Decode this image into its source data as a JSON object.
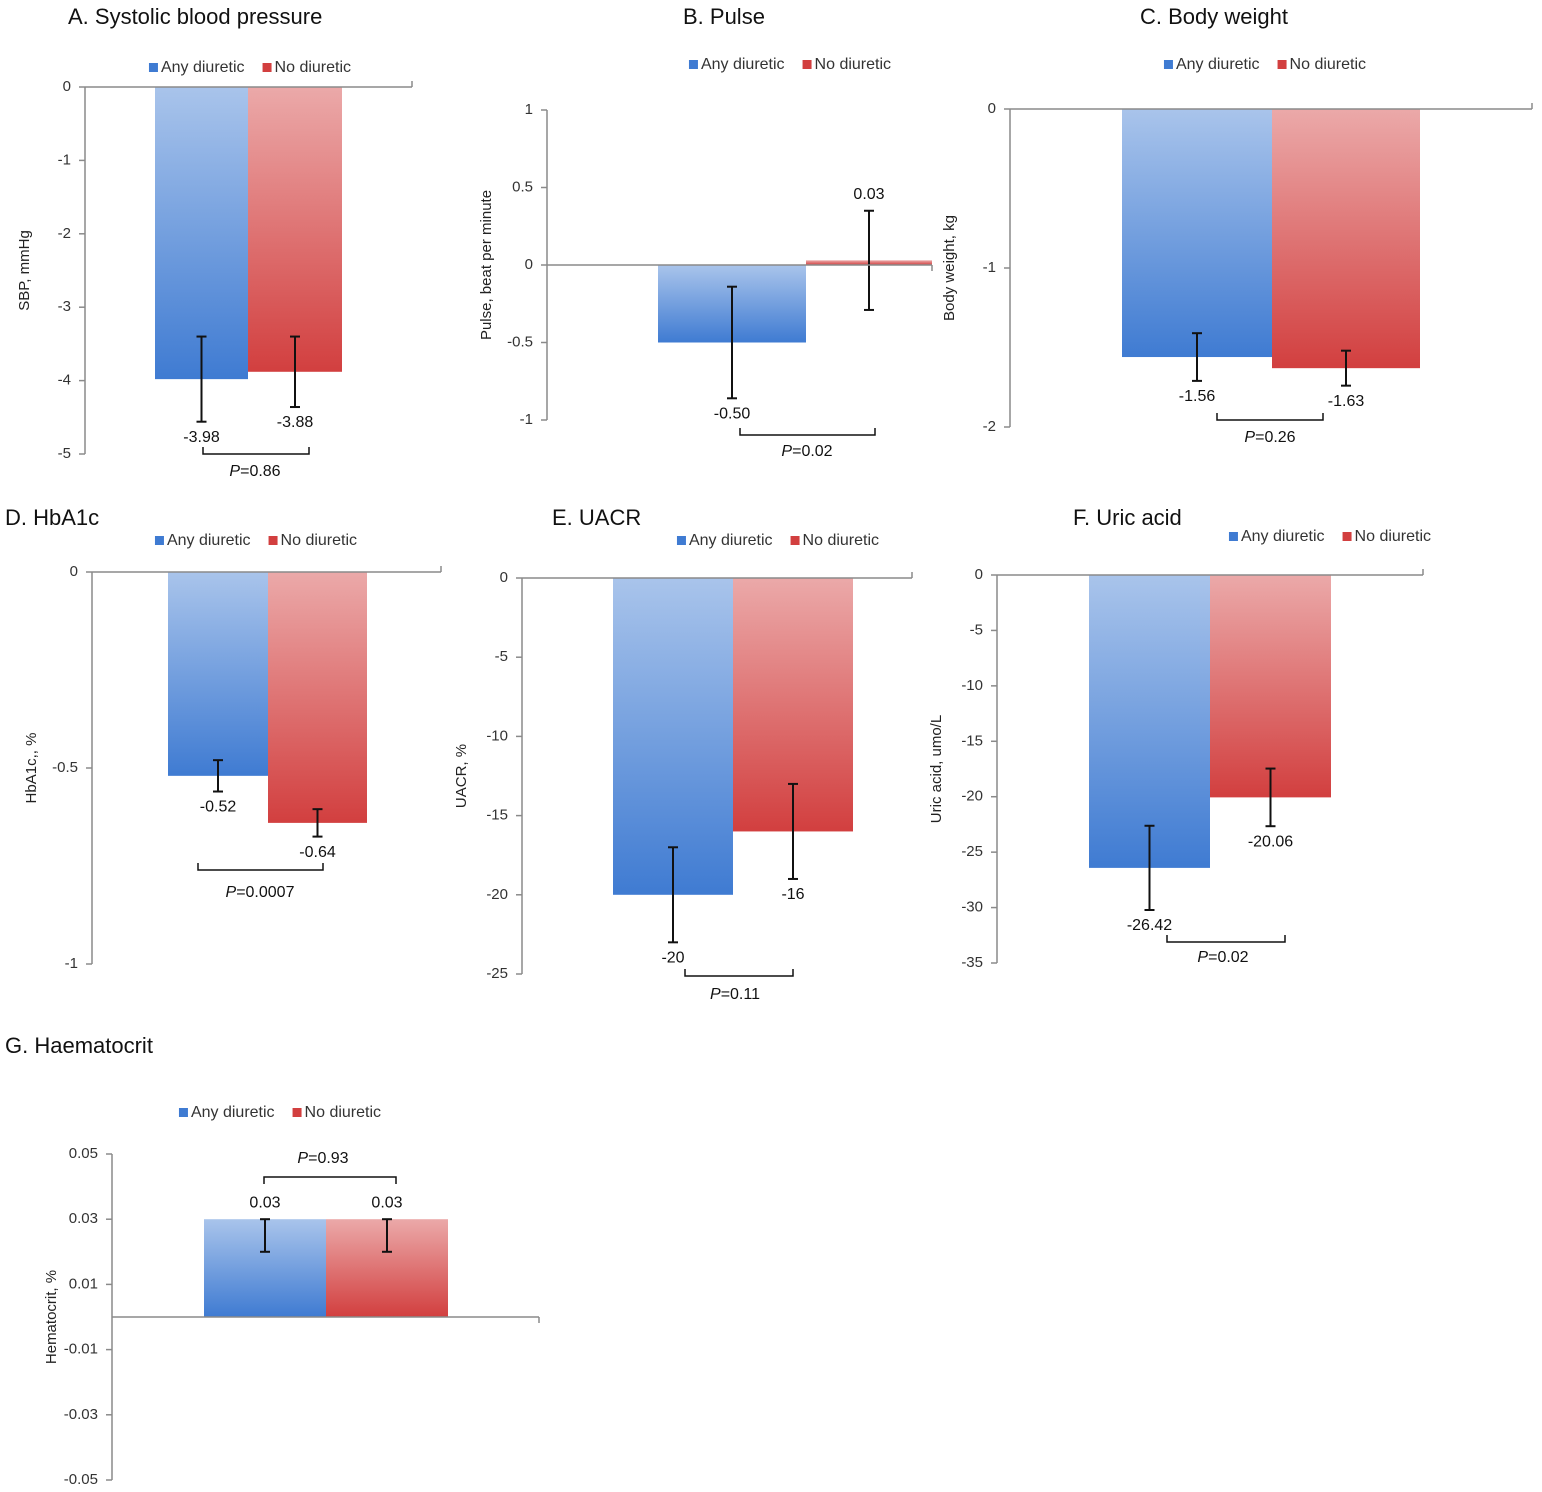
{
  "chart_data": [
    {
      "type": "bar",
      "title": "A. Systolic blood pressure",
      "ylabel": "SBP, mmHg",
      "series": [
        {
          "name": "Any diuretic",
          "color": "#3f7bd2",
          "values": [
            -3.98
          ],
          "errors": [
            0.58
          ]
        },
        {
          "name": "No diuretic",
          "color": "#d23f3f",
          "values": [
            -3.88
          ],
          "errors": [
            0.48
          ]
        }
      ],
      "ylim": [
        -5,
        0
      ],
      "yticks": [
        0,
        -1,
        -2,
        -3,
        -4,
        -5
      ],
      "annotation": {
        "prefix": "P",
        "text": "=0.86"
      }
    },
    {
      "type": "bar",
      "title": "B. Pulse",
      "ylabel": "Pulse, beat per minute",
      "series": [
        {
          "name": "Any diuretic",
          "color": "#3f7bd2",
          "values": [
            -0.5
          ],
          "value_labels": [
            "-0.50"
          ],
          "errors": [
            0.36
          ]
        },
        {
          "name": "No diuretic",
          "color": "#d23f3f",
          "values": [
            0.03
          ],
          "errors": [
            0.32
          ]
        }
      ],
      "ylim": [
        -1,
        1
      ],
      "yticks": [
        1,
        0.5,
        0,
        -0.5,
        -1
      ],
      "annotation": {
        "prefix": "P",
        "text": "=0.02"
      }
    },
    {
      "type": "bar",
      "title": "C. Body weight",
      "ylabel": "Body weight, kg",
      "series": [
        {
          "name": "Any diuretic",
          "color": "#3f7bd2",
          "values": [
            -1.56
          ],
          "errors": [
            0.15
          ]
        },
        {
          "name": "No diuretic",
          "color": "#d23f3f",
          "values": [
            -1.63
          ],
          "errors": [
            0.11
          ]
        }
      ],
      "ylim": [
        -2,
        0
      ],
      "yticks": [
        0,
        -1,
        -2
      ],
      "annotation": {
        "prefix": "P",
        "text": "=0.26"
      }
    },
    {
      "type": "bar",
      "title": "D. HbA1c",
      "ylabel": "HbA1c,, %",
      "series": [
        {
          "name": "Any diuretic",
          "color": "#3f7bd2",
          "values": [
            -0.52
          ],
          "errors": [
            0.04
          ]
        },
        {
          "name": "No diuretic",
          "color": "#d23f3f",
          "values": [
            -0.64
          ],
          "errors": [
            0.035
          ]
        }
      ],
      "ylim": [
        -1,
        0
      ],
      "yticks": [
        0,
        -0.5,
        -1
      ],
      "annotation": {
        "prefix": "P",
        "text": "=0.0007"
      }
    },
    {
      "type": "bar",
      "title": "E. UACR",
      "ylabel": "UACR, %",
      "series": [
        {
          "name": "Any diuretic",
          "color": "#3f7bd2",
          "values": [
            -20
          ],
          "errors": [
            3
          ]
        },
        {
          "name": "No diuretic",
          "color": "#d23f3f",
          "values": [
            -16
          ],
          "errors": [
            3
          ]
        }
      ],
      "ylim": [
        -25,
        0
      ],
      "yticks": [
        0,
        -5,
        -10,
        -15,
        -20,
        -25
      ],
      "annotation": {
        "prefix": "P",
        "text": "=0.11"
      }
    },
    {
      "type": "bar",
      "title": "F. Uric acid",
      "ylabel": "Uric acid, umo/L",
      "series": [
        {
          "name": "Any diuretic",
          "color": "#3f7bd2",
          "values": [
            -26.42
          ],
          "errors": [
            3.8
          ]
        },
        {
          "name": "No diuretic",
          "color": "#d23f3f",
          "values": [
            -20.06
          ],
          "errors": [
            2.6
          ]
        }
      ],
      "ylim": [
        -35,
        0
      ],
      "yticks": [
        0,
        -5,
        -10,
        -15,
        -20,
        -25,
        -30,
        -35
      ],
      "annotation": {
        "prefix": "P",
        "text": "=0.02"
      }
    },
    {
      "type": "bar",
      "title": "G. Haematocrit",
      "ylabel": "Hematocrit, %",
      "series": [
        {
          "name": "Any diuretic",
          "color": "#3f7bd2",
          "values": [
            0.03
          ],
          "errors": [
            0.01
          ]
        },
        {
          "name": "No diuretic",
          "color": "#d23f3f",
          "values": [
            0.03
          ],
          "errors": [
            0.01
          ]
        }
      ],
      "error_direction": "lower",
      "ylim": [
        -0.05,
        0.05
      ],
      "yticks": [
        0.05,
        0.03,
        0.01,
        -0.01,
        -0.03,
        -0.05
      ],
      "annotation": {
        "prefix": "P",
        "text": "=0.93"
      }
    }
  ]
}
